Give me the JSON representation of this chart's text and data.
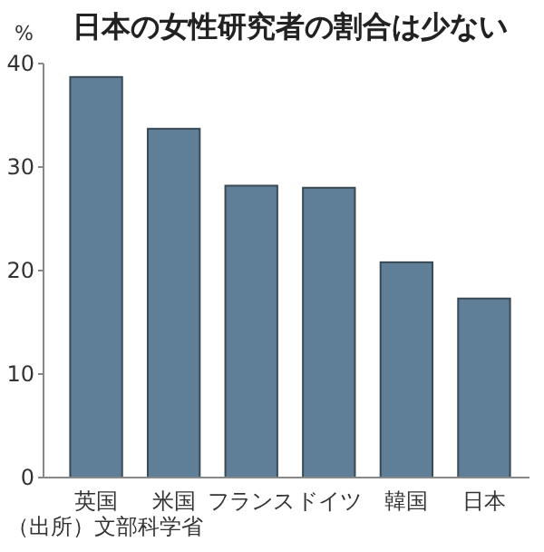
{
  "chart_data": {
    "type": "bar",
    "title": "日本の女性研究者の割合は少ない",
    "ylabel": "%",
    "categories": [
      "英国",
      "米国",
      "フランス",
      "ドイツ",
      "韓国",
      "日本"
    ],
    "values": [
      38.7,
      33.7,
      28.2,
      28.0,
      20.8,
      17.3
    ],
    "color": "#5f7f99",
    "ylim": [
      0,
      40
    ],
    "yticks": [
      0,
      10,
      20,
      30,
      40
    ],
    "grid": false,
    "annotations": [
      "（出所）文部科学省"
    ]
  }
}
